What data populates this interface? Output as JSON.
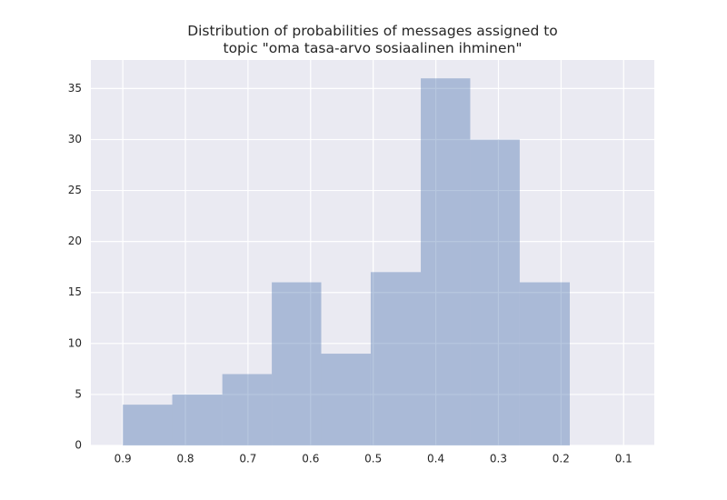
{
  "chart_data": {
    "type": "histogram",
    "title": "Distribution of probabilities of messages assigned to\ntopic \"oma tasa-arvo sosiaalinen ihminen\"",
    "bins": [
      0.186,
      0.266,
      0.345,
      0.424,
      0.504,
      0.583,
      0.662,
      0.741,
      0.821,
      0.9
    ],
    "values": [
      16,
      30,
      36,
      17,
      9,
      16,
      7,
      5,
      4
    ],
    "color": "#4c72b0",
    "alpha": 0.4,
    "xlim": [
      0.951,
      0.051
    ],
    "xticks": [
      0.9,
      0.8,
      0.7,
      0.6,
      0.5,
      0.4,
      0.3,
      0.2,
      0.1
    ],
    "ylim": [
      0,
      37.8
    ],
    "yticks": [
      0,
      5,
      10,
      15,
      20,
      25,
      30,
      35
    ],
    "grid": true
  }
}
